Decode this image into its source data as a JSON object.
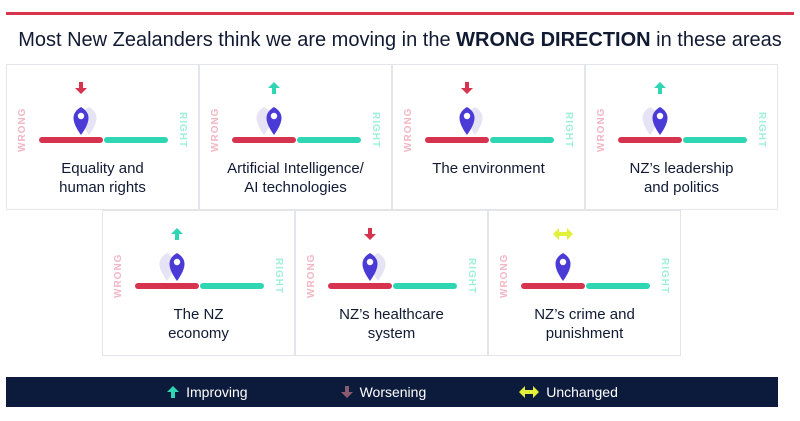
{
  "title": {
    "prefix": "Most New Zealanders think we are moving in the ",
    "emphasis": "WRONG DIRECTION",
    "suffix": " in these areas"
  },
  "axis": {
    "wrong": "WRONG",
    "right": "RIGHT"
  },
  "areas": [
    {
      "label": "Equality and\nhuman rights",
      "trend": "worsening"
    },
    {
      "label": "Artificial Intelligence/\nAI technologies",
      "trend": "improving"
    },
    {
      "label": "The environment",
      "trend": "worsening"
    },
    {
      "label": "NZ’s leadership\nand politics",
      "trend": "improving"
    },
    {
      "label": "The NZ\neconomy",
      "trend": "improving"
    },
    {
      "label": "NZ’s healthcare\nsystem",
      "trend": "worsening"
    },
    {
      "label": "NZ’s crime and\npunishment",
      "trend": "unchanged"
    }
  ],
  "legend": {
    "improving": "Improving",
    "worsening": "Worsening",
    "unchanged": "Unchanged"
  },
  "colors": {
    "wrong": "#d6334f",
    "right": "#2fd6b4",
    "pin": "#4b3bd6",
    "improving": "#2fd6b4",
    "worsening": "#d6334f",
    "unchanged": "#e3f03a",
    "navy": "#0c1a3b"
  },
  "icons": {
    "pin": "map-pin-icon",
    "improving": "arrow-up-icon",
    "worsening": "arrow-down-icon",
    "unchanged": "double-arrow-icon"
  }
}
